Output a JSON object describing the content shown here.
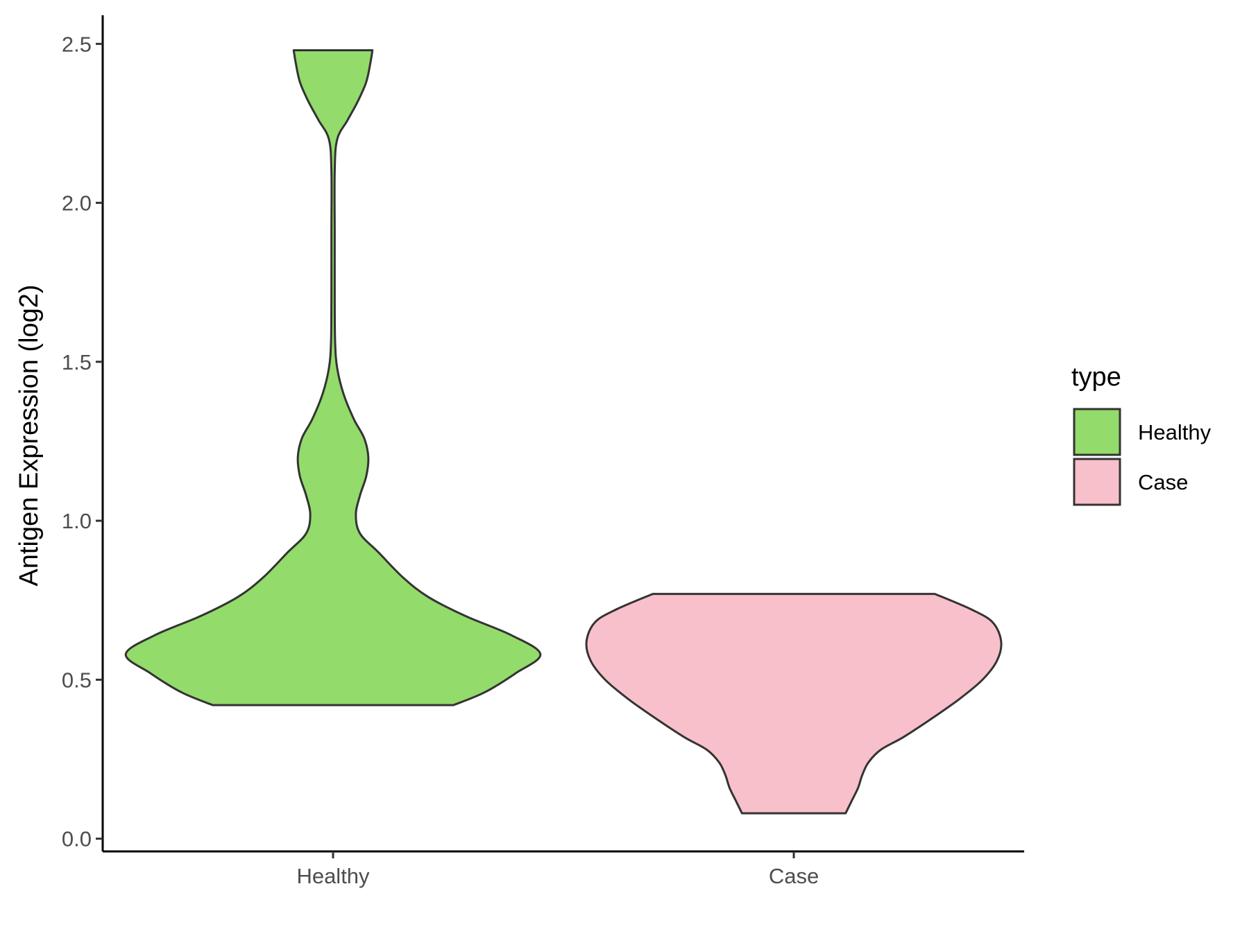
{
  "chart_data": {
    "type": "violin",
    "title": "",
    "xlabel": "",
    "ylabel": "Antigen Expression (log2)",
    "categories": [
      "Healthy",
      "Case"
    ],
    "ylim": [
      -0.04,
      2.59
    ],
    "yticks": [
      0.0,
      0.5,
      1.0,
      1.5,
      2.0,
      2.5
    ],
    "ytick_labels": [
      "0.0",
      "0.5",
      "1.0",
      "1.5",
      "2.0",
      "2.5"
    ],
    "grid": false,
    "legend": {
      "title": "type",
      "placement": "right",
      "entries": [
        {
          "label": "Healthy",
          "color": "#93DB6B"
        },
        {
          "label": "Case",
          "color": "#F8C0CB"
        }
      ]
    },
    "series": [
      {
        "category": "Healthy",
        "color": "#93DB6B",
        "ymin": 0.42,
        "ymax": 2.48,
        "profile": [
          [
            0.42,
            0.58
          ],
          [
            0.46,
            0.73
          ],
          [
            0.52,
            0.88
          ],
          [
            0.58,
            1.0
          ],
          [
            0.64,
            0.86
          ],
          [
            0.7,
            0.64
          ],
          [
            0.76,
            0.46
          ],
          [
            0.82,
            0.34
          ],
          [
            0.9,
            0.22
          ],
          [
            0.96,
            0.13
          ],
          [
            1.02,
            0.11
          ],
          [
            1.08,
            0.13
          ],
          [
            1.14,
            0.16
          ],
          [
            1.2,
            0.17
          ],
          [
            1.26,
            0.15
          ],
          [
            1.32,
            0.1
          ],
          [
            1.4,
            0.05
          ],
          [
            1.48,
            0.02
          ],
          [
            1.56,
            0.01
          ],
          [
            1.7,
            0.008
          ],
          [
            1.9,
            0.008
          ],
          [
            2.1,
            0.008
          ],
          [
            2.2,
            0.02
          ],
          [
            2.26,
            0.07
          ],
          [
            2.32,
            0.12
          ],
          [
            2.38,
            0.16
          ],
          [
            2.44,
            0.18
          ],
          [
            2.48,
            0.19
          ]
        ]
      },
      {
        "category": "Case",
        "color": "#F8C0CB",
        "ymin": 0.08,
        "ymax": 0.77,
        "profile": [
          [
            0.08,
            0.25
          ],
          [
            0.12,
            0.28
          ],
          [
            0.16,
            0.31
          ],
          [
            0.2,
            0.33
          ],
          [
            0.24,
            0.36
          ],
          [
            0.28,
            0.42
          ],
          [
            0.32,
            0.53
          ],
          [
            0.38,
            0.67
          ],
          [
            0.44,
            0.8
          ],
          [
            0.5,
            0.91
          ],
          [
            0.56,
            0.98
          ],
          [
            0.62,
            1.0
          ],
          [
            0.68,
            0.96
          ],
          [
            0.72,
            0.86
          ],
          [
            0.77,
            0.68
          ]
        ]
      }
    ]
  }
}
